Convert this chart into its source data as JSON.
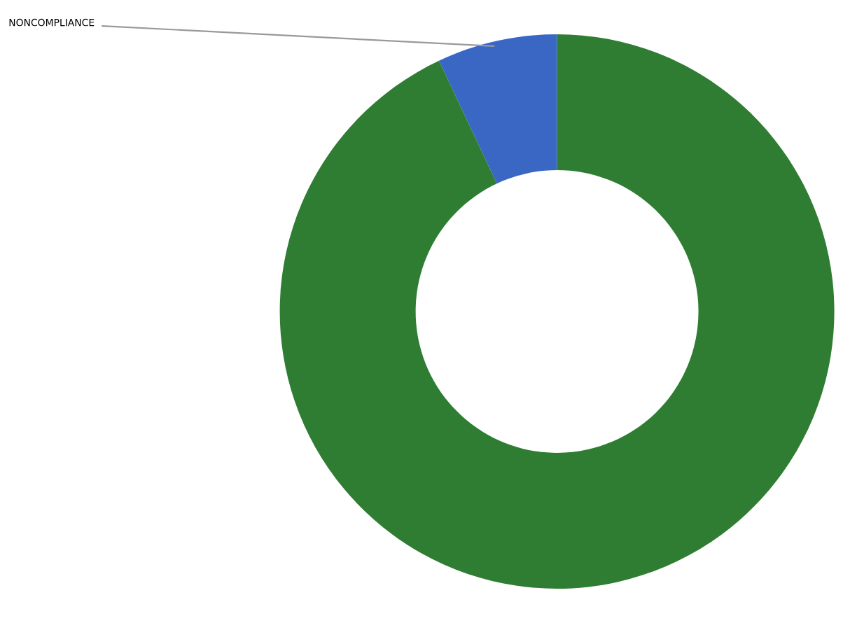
{
  "chart_data": {
    "type": "donut",
    "categories": [
      "NONCOMPLIANCE",
      null
    ],
    "values": [
      7,
      93
    ],
    "colors": [
      "#3a66c4",
      "#2e7d32"
    ]
  }
}
